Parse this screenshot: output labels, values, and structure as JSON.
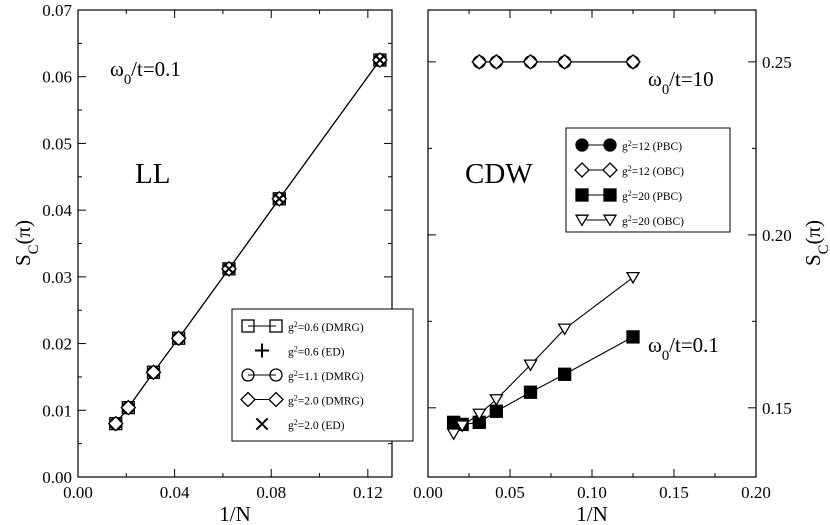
{
  "chart_data": [
    {
      "type": "line",
      "panel": "left",
      "xlabel": "1/N",
      "ylabel": "S_C(π)",
      "xlim": [
        0,
        0.13
      ],
      "ylim": [
        0,
        0.07
      ],
      "xticks": [
        0.0,
        0.04,
        0.08,
        0.12
      ],
      "xtick_labels": [
        "0.00",
        "0.04",
        "0.08",
        "0.12"
      ],
      "yticks": [
        0.0,
        0.01,
        0.02,
        0.03,
        0.04,
        0.05,
        0.06,
        0.07
      ],
      "ytick_labels": [
        "0.00",
        "0.01",
        "0.02",
        "0.03",
        "0.04",
        "0.05",
        "0.06",
        "0.07"
      ],
      "annotations": [
        {
          "id": "omega",
          "base": "ω",
          "sub": "0",
          "rest": "/t=0.1"
        },
        {
          "id": "phase",
          "text": "LL"
        }
      ],
      "legend_position": "bottom-right",
      "series": [
        {
          "label_base": "g",
          "label_sup": "2",
          "label_rest": "=0.6 (DMRG)",
          "marker": "square",
          "line": true,
          "x": [
            0.015625,
            0.020833,
            0.03125,
            0.041667,
            0.0625,
            0.083333,
            0.125
          ],
          "y": [
            0.008,
            0.0104,
            0.0157,
            0.0208,
            0.0312,
            0.0417,
            0.0625
          ]
        },
        {
          "label_base": "g",
          "label_sup": "2",
          "label_rest": "=0.6 (ED)",
          "marker": "plus",
          "line": false,
          "x": [
            0.0625,
            0.083333,
            0.125
          ],
          "y": [
            0.0312,
            0.0417,
            0.0625
          ]
        },
        {
          "label_base": "g",
          "label_sup": "2",
          "label_rest": "=1.1 (DMRG)",
          "marker": "circle",
          "line": true,
          "x": [
            0.015625,
            0.020833,
            0.03125,
            0.041667,
            0.0625,
            0.083333,
            0.125
          ],
          "y": [
            0.008,
            0.0104,
            0.0157,
            0.0208,
            0.0312,
            0.0417,
            0.0625
          ]
        },
        {
          "label_base": "g",
          "label_sup": "2",
          "label_rest": "=2.0 (DMRG)",
          "marker": "diamond",
          "line": true,
          "x": [
            0.015625,
            0.020833,
            0.03125,
            0.041667,
            0.0625,
            0.083333,
            0.125
          ],
          "y": [
            0.008,
            0.0104,
            0.0157,
            0.0208,
            0.0312,
            0.0417,
            0.0625
          ]
        },
        {
          "label_base": "g",
          "label_sup": "2",
          "label_rest": "=2.0 (ED)",
          "marker": "cross",
          "line": false,
          "x": [
            0.0625,
            0.083333,
            0.125
          ],
          "y": [
            0.0312,
            0.0417,
            0.0625
          ]
        }
      ]
    },
    {
      "type": "line",
      "panel": "right",
      "xlabel": "1/N",
      "ylabel": "S_C(π)",
      "xlim": [
        0,
        0.2
      ],
      "ylim": [
        0.13,
        0.265
      ],
      "xticks": [
        0.0,
        0.05,
        0.1,
        0.15,
        0.2
      ],
      "xtick_labels": [
        "0.00",
        "0.05",
        "0.10",
        "0.15",
        "0.20"
      ],
      "yticks": [
        0.15,
        0.2,
        0.25
      ],
      "ytick_labels": [
        "0.15",
        "0.20",
        "0.25"
      ],
      "annotations": [
        {
          "id": "omega10",
          "base": "ω",
          "sub": "0",
          "rest": "/t=10"
        },
        {
          "id": "omega01",
          "base": "ω",
          "sub": "0",
          "rest": "/t=0.1"
        },
        {
          "id": "phase",
          "text": "CDW"
        }
      ],
      "legend_position": "upper-right",
      "series": [
        {
          "label_base": "g",
          "label_sup": "2",
          "label_rest": "=12 (PBC)",
          "marker": "circle-filled",
          "line": true,
          "x": [
            0.03125,
            0.041667,
            0.0625,
            0.083333,
            0.125
          ],
          "y": [
            0.25,
            0.25,
            0.25,
            0.25,
            0.25
          ]
        },
        {
          "label_base": "g",
          "label_sup": "2",
          "label_rest": "=12 (OBC)",
          "marker": "diamond",
          "line": true,
          "x": [
            0.03125,
            0.041667,
            0.0625,
            0.083333,
            0.125
          ],
          "y": [
            0.25,
            0.25,
            0.25,
            0.25,
            0.25
          ]
        },
        {
          "label_base": "g",
          "label_sup": "2",
          "label_rest": "=20 (PBC)",
          "marker": "square-filled",
          "line": true,
          "x": [
            0.015625,
            0.020833,
            0.03125,
            0.041667,
            0.0625,
            0.083333,
            0.125
          ],
          "y": [
            0.1458,
            0.1452,
            0.1458,
            0.149,
            0.1545,
            0.1597,
            0.1705
          ]
        },
        {
          "label_base": "g",
          "label_sup": "2",
          "label_rest": "=20 (OBC)",
          "marker": "triangle-down",
          "line": true,
          "x": [
            0.015625,
            0.020833,
            0.03125,
            0.041667,
            0.0625,
            0.083333,
            0.125
          ],
          "y": [
            0.1425,
            0.1448,
            0.1482,
            0.1524,
            0.1624,
            0.1728,
            0.1877
          ]
        }
      ]
    }
  ]
}
